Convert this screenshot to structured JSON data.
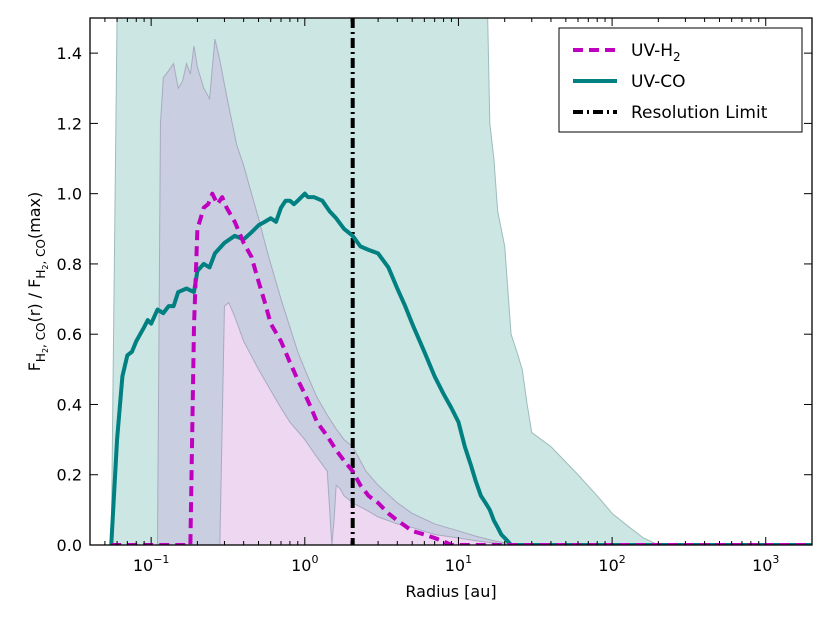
{
  "chart_data": {
    "type": "line",
    "xscale": "log",
    "xlim": [
      0.04,
      2000
    ],
    "ylim": [
      0.0,
      1.5
    ],
    "xlabel": "Radius [au]",
    "ylabel": {
      "F": "F",
      "sub": "H",
      "sub2": "2",
      "subrest": ", CO",
      "mid": "(r) / F",
      "end": "(max)"
    },
    "x_ticks": [
      {
        "value": 0.1,
        "base": "10",
        "exp": "−1"
      },
      {
        "value": 1,
        "base": "10",
        "exp": "0"
      },
      {
        "value": 10,
        "base": "10",
        "exp": "1"
      },
      {
        "value": 100,
        "base": "10",
        "exp": "2"
      },
      {
        "value": 1000,
        "base": "10",
        "exp": "3"
      }
    ],
    "y_ticks": [
      {
        "value": 0.0,
        "label": "0.0"
      },
      {
        "value": 0.2,
        "label": "0.2"
      },
      {
        "value": 0.4,
        "label": "0.4"
      },
      {
        "value": 0.6,
        "label": "0.6"
      },
      {
        "value": 0.8,
        "label": "0.8"
      },
      {
        "value": 1.0,
        "label": "1.0"
      },
      {
        "value": 1.2,
        "label": "1.2"
      },
      {
        "value": 1.4,
        "label": "1.4"
      }
    ],
    "colors": {
      "h2_line": "#bf00bf",
      "co_line": "#008080",
      "co_band_fill": "#cce6e4",
      "co_band_edge": "#9dbcba",
      "h2_band_fill": "#c9cce0",
      "h2_band_edge": "#a8aac0",
      "h2_low_fill": "#f4d8f2",
      "res_line": "#000000"
    },
    "resolution_limit": 2.05,
    "legend": {
      "position": "top-right",
      "entries": [
        {
          "label": "UV-H",
          "sub": "2",
          "style": "dashed",
          "key": "h2"
        },
        {
          "label": "UV-CO",
          "sub": "",
          "style": "solid",
          "key": "co"
        },
        {
          "label": "Resolution Limit",
          "sub": "",
          "style": "dashdot",
          "key": "res"
        }
      ]
    },
    "series": [
      {
        "name": "UV-H2",
        "x": [
          0.055,
          0.18,
          0.19,
          0.2,
          0.21,
          0.22,
          0.235,
          0.25,
          0.27,
          0.29,
          0.31,
          0.35,
          0.4,
          0.45,
          0.5,
          0.55,
          0.6,
          0.7,
          0.8,
          0.9,
          1.0,
          1.1,
          1.2,
          1.4,
          1.6,
          1.8,
          2.05,
          2.3,
          2.6,
          3.0,
          3.5,
          4.0,
          5.0,
          6.0,
          7.0,
          8.0,
          9.0,
          12,
          20,
          2000
        ],
        "values": [
          0.0,
          0.0,
          0.62,
          0.9,
          0.93,
          0.96,
          0.97,
          1.0,
          0.97,
          0.99,
          0.96,
          0.92,
          0.86,
          0.82,
          0.75,
          0.69,
          0.63,
          0.58,
          0.52,
          0.47,
          0.43,
          0.39,
          0.35,
          0.31,
          0.27,
          0.24,
          0.21,
          0.17,
          0.14,
          0.12,
          0.09,
          0.07,
          0.04,
          0.03,
          0.02,
          0.01,
          0.0,
          0.0,
          0.0,
          0.0
        ]
      },
      {
        "name": "UV-CO",
        "x": [
          0.055,
          0.06,
          0.065,
          0.07,
          0.075,
          0.08,
          0.09,
          0.095,
          0.1,
          0.11,
          0.12,
          0.13,
          0.14,
          0.15,
          0.17,
          0.19,
          0.2,
          0.22,
          0.24,
          0.26,
          0.3,
          0.35,
          0.4,
          0.45,
          0.5,
          0.55,
          0.6,
          0.65,
          0.7,
          0.75,
          0.8,
          0.85,
          0.9,
          1.0,
          1.05,
          1.15,
          1.3,
          1.45,
          1.6,
          1.8,
          2.05,
          2.3,
          2.6,
          3.0,
          3.5,
          4.0,
          4.5,
          5.0,
          6.0,
          7.0,
          8.0,
          9.0,
          10.0,
          11,
          12,
          13,
          14,
          15,
          16,
          17,
          18,
          19,
          20,
          21,
          22,
          2000
        ],
        "values": [
          0.0,
          0.3,
          0.48,
          0.54,
          0.55,
          0.58,
          0.62,
          0.64,
          0.63,
          0.67,
          0.66,
          0.68,
          0.68,
          0.72,
          0.73,
          0.72,
          0.78,
          0.8,
          0.79,
          0.83,
          0.86,
          0.88,
          0.87,
          0.89,
          0.91,
          0.92,
          0.93,
          0.92,
          0.96,
          0.98,
          0.98,
          0.97,
          0.98,
          1.0,
          0.99,
          0.99,
          0.98,
          0.95,
          0.93,
          0.9,
          0.88,
          0.85,
          0.84,
          0.83,
          0.79,
          0.73,
          0.68,
          0.63,
          0.55,
          0.48,
          0.43,
          0.39,
          0.35,
          0.28,
          0.23,
          0.18,
          0.14,
          0.12,
          0.1,
          0.07,
          0.05,
          0.03,
          0.02,
          0.01,
          0.0,
          0.0
        ]
      }
    ],
    "bands": [
      {
        "name": "UV-CO range",
        "x": [
          0.055,
          0.06,
          0.07,
          15.5,
          16,
          17,
          18,
          20,
          22,
          24,
          26,
          28,
          30,
          40,
          60,
          80,
          100,
          130,
          160,
          200,
          2000
        ],
        "upper": [
          0.0,
          1.5,
          1.5,
          1.5,
          1.2,
          1.1,
          0.95,
          0.85,
          0.6,
          0.55,
          0.5,
          0.4,
          0.32,
          0.28,
          0.2,
          0.14,
          0.09,
          0.05,
          0.02,
          0.0,
          0.0
        ],
        "lower": [
          0.0,
          0.0,
          0.0,
          0.0,
          0.0,
          0.0,
          0.0,
          0.0,
          0.0,
          0.0,
          0.0,
          0.0,
          0.0,
          0.0,
          0.0,
          0.0,
          0.0,
          0.0,
          0.0,
          0.0,
          0.0
        ]
      },
      {
        "name": "UV-H2 range",
        "x": [
          0.11,
          0.115,
          0.12,
          0.13,
          0.14,
          0.15,
          0.16,
          0.17,
          0.18,
          0.19,
          0.2,
          0.22,
          0.24,
          0.26,
          0.28,
          0.3,
          0.33,
          0.36,
          0.4,
          0.45,
          0.5,
          0.55,
          0.6,
          0.7,
          0.8,
          0.9,
          1.0,
          1.2,
          1.4,
          1.6,
          1.8,
          2.05,
          2.5,
          3.0,
          4.0,
          5.0,
          7.0,
          10.0,
          13,
          17,
          20,
          22
        ],
        "upper": [
          0.0,
          1.2,
          1.33,
          1.35,
          1.37,
          1.3,
          1.32,
          1.37,
          1.34,
          1.42,
          1.36,
          1.3,
          1.27,
          1.44,
          1.38,
          1.31,
          1.22,
          1.14,
          1.08,
          1.0,
          0.93,
          0.86,
          0.8,
          0.7,
          0.62,
          0.55,
          0.5,
          0.42,
          0.37,
          0.33,
          0.3,
          0.28,
          0.21,
          0.17,
          0.12,
          0.09,
          0.06,
          0.04,
          0.025,
          0.012,
          0.006,
          0.0
        ],
        "lower": [
          0.0,
          0.0,
          0.0,
          0.0,
          0.0,
          0.0,
          0.0,
          0.0,
          0.0,
          0.0,
          0.0,
          0.0,
          0.0,
          0.0,
          0.0,
          0.0,
          0.0,
          0.0,
          0.0,
          0.0,
          0.0,
          0.0,
          0.0,
          0.0,
          0.0,
          0.0,
          0.0,
          0.0,
          0.0,
          0.0,
          0.0,
          0.0,
          0.0,
          0.0,
          0.0,
          0.0,
          0.0,
          0.0,
          0.0,
          0.0,
          0.0,
          0.0
        ]
      },
      {
        "name": "UV-H2 low envelope",
        "x": [
          0.28,
          0.3,
          0.32,
          0.35,
          0.4,
          0.5,
          0.6,
          0.7,
          0.8,
          1.0,
          1.2,
          1.4,
          1.5,
          1.55,
          1.6,
          1.7,
          1.8,
          2.05,
          2.5,
          3.0,
          4.0,
          5.0,
          7.0,
          10.0,
          14,
          18,
          22
        ],
        "upper": [
          0.0,
          0.68,
          0.69,
          0.65,
          0.58,
          0.5,
          0.44,
          0.39,
          0.35,
          0.3,
          0.25,
          0.21,
          0.0,
          0.07,
          0.17,
          0.16,
          0.14,
          0.12,
          0.1,
          0.08,
          0.06,
          0.05,
          0.03,
          0.02,
          0.01,
          0.005,
          0.0
        ],
        "lower": [
          0.0,
          0.0,
          0.0,
          0.0,
          0.0,
          0.0,
          0.0,
          0.0,
          0.0,
          0.0,
          0.0,
          0.0,
          0.0,
          0.0,
          0.0,
          0.0,
          0.0,
          0.0,
          0.0,
          0.0,
          0.0,
          0.0,
          0.0,
          0.0,
          0.0,
          0.0,
          0.0
        ]
      }
    ]
  }
}
